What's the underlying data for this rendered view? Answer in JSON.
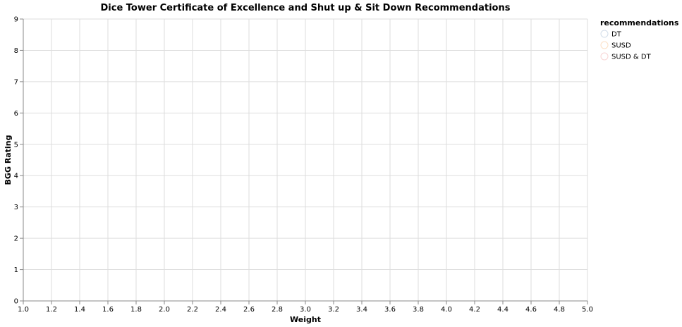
{
  "chart_data": {
    "type": "scatter",
    "title": "Dice Tower Certificate of Excellence and Shut up & Sit Down Recommendations",
    "xlabel": "Weight",
    "ylabel": "BGG Rating",
    "xlim": [
      1.0,
      5.0
    ],
    "ylim": [
      0,
      9
    ],
    "x_ticks": [
      "1.0",
      "1.2",
      "1.4",
      "1.6",
      "1.8",
      "2.0",
      "2.2",
      "2.4",
      "2.6",
      "2.8",
      "3.0",
      "3.2",
      "3.4",
      "3.6",
      "3.8",
      "4.0",
      "4.2",
      "4.4",
      "4.6",
      "4.8",
      "5.0"
    ],
    "y_ticks": [
      "0",
      "1",
      "2",
      "3",
      "4",
      "5",
      "6",
      "7",
      "8",
      "9"
    ],
    "grid": true,
    "legend": {
      "title": "recommendations",
      "placement": "right",
      "items": [
        {
          "label": "DT",
          "color": "#4c78a8"
        },
        {
          "label": "SUSD",
          "color": "#f58518"
        },
        {
          "label": "SUSD & DT",
          "color": "#e45756"
        }
      ]
    },
    "series": [
      {
        "name": "DT",
        "points": []
      },
      {
        "name": "SUSD",
        "points": []
      },
      {
        "name": "SUSD & DT",
        "points": []
      }
    ]
  }
}
